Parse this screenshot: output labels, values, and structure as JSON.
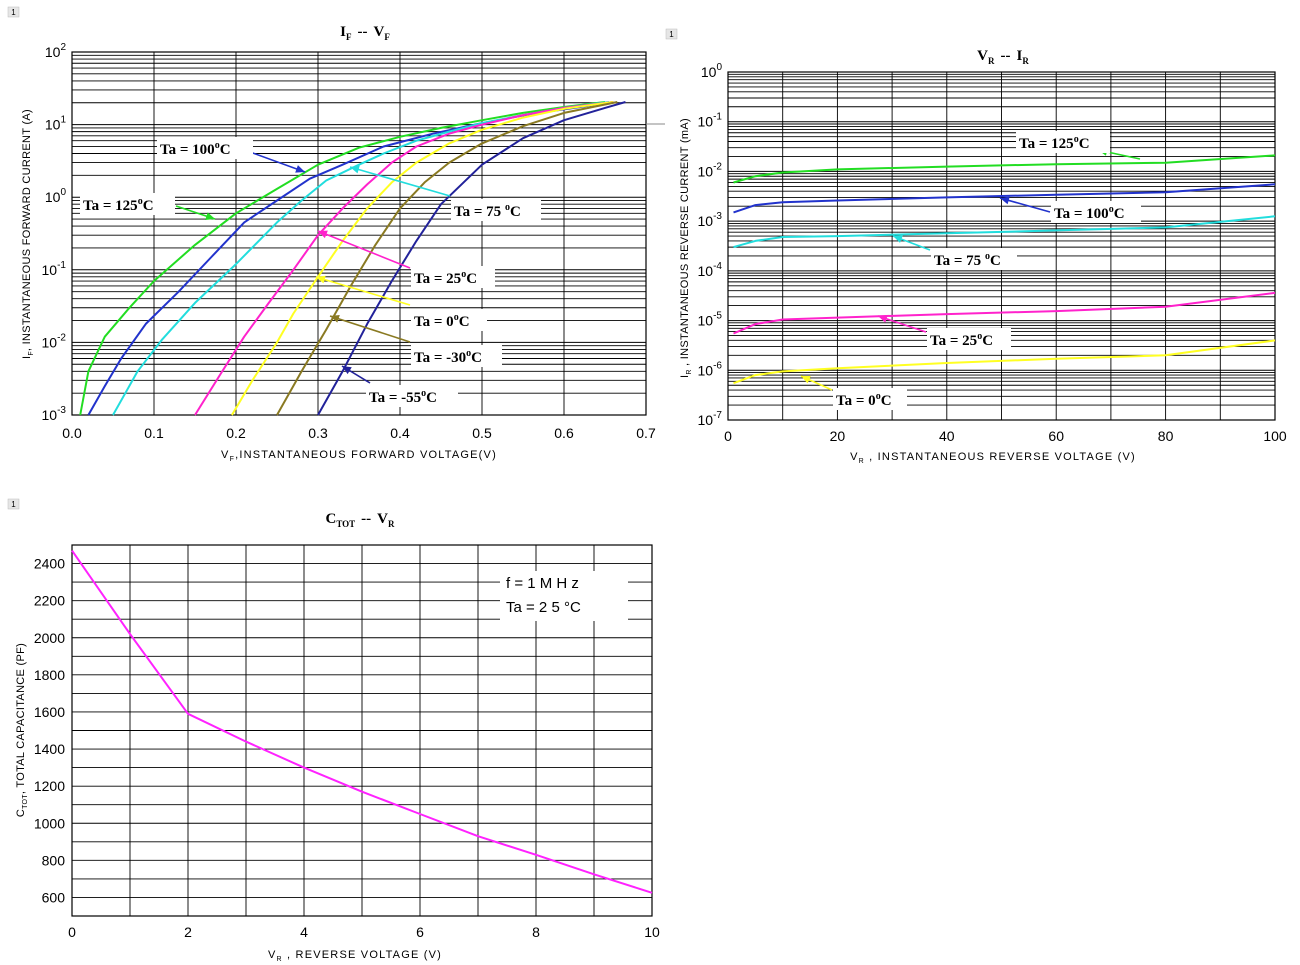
{
  "chart_data": [
    {
      "id": "ifvf",
      "type": "line",
      "title": "I F -- V F",
      "title_parts": [
        "I",
        "F",
        "--",
        "V",
        "F"
      ],
      "xlabel": "V F ,INSTANTANEOUS  FORWARD  VOLTAGE(V)",
      "xlabel_parts": [
        "V",
        "F",
        ",INSTANTANEOUS  FORWARD  VOLTAGE(V)"
      ],
      "ylabel": "I F , INSTANTANEOUS  FORWARD  CURRENT (A)",
      "ylabel_parts": [
        "I",
        "F",
        ", INSTANTANEOUS  FORWARD  CURRENT (A)"
      ],
      "xlim": [
        0,
        0.7
      ],
      "ylim": [
        0.001,
        100
      ],
      "yscale": "log",
      "grid": true,
      "x_ticks": [
        "0.0",
        "0.1",
        "0.2",
        "0.3",
        "0.4",
        "0.5",
        "0.6",
        "0.7"
      ],
      "y_ticks": [
        {
          "base": "10",
          "exp": "-3"
        },
        {
          "base": "10",
          "exp": "-2"
        },
        {
          "base": "10",
          "exp": "-1"
        },
        {
          "base": "10",
          "exp": "0"
        },
        {
          "base": "10",
          "exp": "1"
        },
        {
          "base": "10",
          "exp": "2"
        }
      ],
      "series": [
        {
          "name": "Ta = 125°C",
          "color": "#22dd22",
          "x": [
            0.01,
            0.02,
            0.04,
            0.07,
            0.1,
            0.15,
            0.2,
            0.25,
            0.3,
            0.35,
            0.4,
            0.45,
            0.5,
            0.55,
            0.6,
            0.65
          ],
          "y": [
            0.001,
            0.004,
            0.012,
            0.03,
            0.07,
            0.22,
            0.6,
            1.3,
            2.8,
            4.8,
            6.8,
            9.0,
            11.5,
            14.5,
            17.5,
            20.5
          ]
        },
        {
          "name": "Ta = 100°C",
          "color": "#2233cc",
          "x": [
            0.02,
            0.04,
            0.06,
            0.09,
            0.13,
            0.17,
            0.21,
            0.25,
            0.29,
            0.33,
            0.38,
            0.44,
            0.5,
            0.56,
            0.62,
            0.66
          ],
          "y": [
            0.001,
            0.0025,
            0.006,
            0.018,
            0.05,
            0.15,
            0.45,
            0.9,
            1.8,
            2.8,
            5.0,
            7.5,
            10.5,
            14.0,
            17.5,
            20.5
          ]
        },
        {
          "name": "Ta = 75°C",
          "color": "#22dddd",
          "x": [
            0.05,
            0.08,
            0.11,
            0.15,
            0.2,
            0.25,
            0.28,
            0.31,
            0.35,
            0.38,
            0.42,
            0.46,
            0.5,
            0.55,
            0.6,
            0.655
          ],
          "y": [
            0.001,
            0.004,
            0.011,
            0.035,
            0.12,
            0.45,
            0.9,
            1.7,
            2.8,
            4.0,
            6.0,
            8.0,
            10.5,
            13.5,
            17.0,
            20.5
          ]
        },
        {
          "name": "Ta = 25°C",
          "color": "#ff22cc",
          "x": [
            0.15,
            0.18,
            0.21,
            0.24,
            0.27,
            0.3,
            0.33,
            0.36,
            0.39,
            0.42,
            0.46,
            0.5,
            0.55,
            0.6,
            0.66
          ],
          "y": [
            0.001,
            0.0035,
            0.012,
            0.035,
            0.1,
            0.3,
            0.7,
            1.5,
            3.0,
            5.0,
            7.5,
            10.0,
            13.5,
            17.0,
            20.5
          ]
        },
        {
          "name": "Ta = 0°C",
          "color": "#ffff22",
          "x": [
            0.195,
            0.22,
            0.25,
            0.27,
            0.3,
            0.33,
            0.36,
            0.39,
            0.42,
            0.46,
            0.5,
            0.55,
            0.6,
            0.66
          ],
          "y": [
            0.001,
            0.003,
            0.01,
            0.025,
            0.08,
            0.25,
            0.7,
            1.6,
            3.0,
            5.5,
            8.5,
            12.5,
            16.5,
            20.5
          ]
        },
        {
          "name": "Ta = -30°C",
          "color": "#8a7a22",
          "x": [
            0.25,
            0.28,
            0.31,
            0.34,
            0.37,
            0.4,
            0.43,
            0.46,
            0.5,
            0.55,
            0.6,
            0.665
          ],
          "y": [
            0.001,
            0.004,
            0.015,
            0.06,
            0.22,
            0.7,
            1.6,
            3.0,
            5.5,
            9.5,
            14.5,
            20.5
          ]
        },
        {
          "name": "Ta = -55°C",
          "color": "#22229a",
          "x": [
            0.3,
            0.33,
            0.36,
            0.39,
            0.42,
            0.45,
            0.5,
            0.55,
            0.6,
            0.65,
            0.675
          ],
          "y": [
            0.001,
            0.004,
            0.018,
            0.07,
            0.25,
            0.8,
            2.8,
            6.5,
            11.5,
            17.0,
            20.5
          ]
        }
      ],
      "annotations": [
        {
          "text": "Ta = 100",
          "sup": "o",
          "unit": "C",
          "series": 1
        },
        {
          "text": "Ta = 125",
          "sup": "o",
          "unit": "C",
          "series": 0
        },
        {
          "text": "Ta = 75 ",
          "sup": "o",
          "unit": "C",
          "series": 2
        },
        {
          "text": "Ta = 25",
          "sup": "o",
          "unit": "C",
          "series": 3
        },
        {
          "text": "Ta = 0",
          "sup": "o",
          "unit": "C",
          "series": 4
        },
        {
          "text": "Ta = -30",
          "sup": "o",
          "unit": "C",
          "series": 5
        },
        {
          "text": "Ta = -55",
          "sup": "o",
          "unit": "C",
          "series": 6
        }
      ]
    },
    {
      "id": "vrir",
      "type": "line",
      "title": "V R -- I R",
      "title_parts": [
        "V",
        "R",
        "--",
        "I",
        "R"
      ],
      "xlabel": "V R , INSTANTANEOUS REVERSE VOLTAGE (V)",
      "xlabel_parts": [
        "V",
        "R",
        " , INSTANTANEOUS REVERSE VOLTAGE (V)"
      ],
      "ylabel": "I R , INSTANTANEOUS  REVERSE  CURRENT (mA)",
      "ylabel_parts": [
        "I",
        "R",
        " , INSTANTANEOUS  REVERSE  CURRENT (mA)"
      ],
      "xlim": [
        0,
        100
      ],
      "ylim": [
        1e-07,
        1
      ],
      "yscale": "log",
      "grid": true,
      "x_ticks": [
        "0",
        "20",
        "40",
        "60",
        "80",
        "100"
      ],
      "y_ticks": [
        {
          "base": "10",
          "exp": "-7"
        },
        {
          "base": "10",
          "exp": "-6"
        },
        {
          "base": "10",
          "exp": "-5"
        },
        {
          "base": "10",
          "exp": "-4"
        },
        {
          "base": "10",
          "exp": "-3"
        },
        {
          "base": "10",
          "exp": "-2"
        },
        {
          "base": "10",
          "exp": "-1"
        },
        {
          "base": "10",
          "exp": "0"
        }
      ],
      "series": [
        {
          "name": "Ta = 125°C",
          "color": "#22dd22",
          "x": [
            1,
            5,
            10,
            20,
            40,
            60,
            80,
            100
          ],
          "y": [
            0.006,
            0.008,
            0.0095,
            0.011,
            0.0125,
            0.014,
            0.015,
            0.021
          ]
        },
        {
          "name": "Ta = 100°C",
          "color": "#2233cc",
          "x": [
            1,
            5,
            10,
            20,
            40,
            60,
            80,
            100
          ],
          "y": [
            0.0015,
            0.0021,
            0.0024,
            0.0026,
            0.003,
            0.0034,
            0.0038,
            0.0055
          ]
        },
        {
          "name": "Ta = 75°C",
          "color": "#22dddd",
          "x": [
            1,
            5,
            10,
            20,
            40,
            60,
            80,
            100
          ],
          "y": [
            0.0003,
            0.0004,
            0.00048,
            0.0005,
            0.00057,
            0.00065,
            0.00075,
            0.00125
          ]
        },
        {
          "name": "Ta = 25°C",
          "color": "#ff22cc",
          "x": [
            1,
            5,
            10,
            20,
            40,
            60,
            80,
            100
          ],
          "y": [
            5.5e-06,
            8.5e-06,
            1.05e-05,
            1.15e-05,
            1.35e-05,
            1.55e-05,
            1.9e-05,
            3.6e-05
          ]
        },
        {
          "name": "Ta = 0°C",
          "color": "#ffff22",
          "x": [
            1,
            5,
            10,
            20,
            40,
            60,
            80,
            100
          ],
          "y": [
            5.5e-07,
            8e-07,
            9.5e-07,
            1.1e-06,
            1.4e-06,
            1.7e-06,
            2e-06,
            4e-06
          ]
        }
      ],
      "annotations": [
        {
          "text": "Ta = 125",
          "sup": "o",
          "unit": "C",
          "series": 0
        },
        {
          "text": "Ta = 100",
          "sup": "o",
          "unit": "C",
          "series": 1
        },
        {
          "text": "Ta = 75 ",
          "sup": "o",
          "unit": "C",
          "series": 2
        },
        {
          "text": "Ta = 25",
          "sup": "o",
          "unit": "C",
          "series": 3
        },
        {
          "text": "Ta = 0",
          "sup": "o",
          "unit": "C",
          "series": 4
        }
      ]
    },
    {
      "id": "ctot",
      "type": "line",
      "title": "C TOT -- V R",
      "title_parts": [
        "C",
        "TOT",
        "--",
        "V",
        "R"
      ],
      "xlabel": "V R , REVERSE VOLTAGE (V)",
      "xlabel_parts": [
        "V",
        "R",
        " , REVERSE VOLTAGE (V)"
      ],
      "ylabel": "C TOT , TOTAL CAPACITANCE (PF)",
      "ylabel_parts": [
        "C",
        "TOT",
        ", TOTAL CAPACITANCE (PF)"
      ],
      "xlim": [
        0,
        10
      ],
      "ylim": [
        500,
        2500
      ],
      "grid": true,
      "x_ticks": [
        "0",
        "2",
        "4",
        "6",
        "8",
        "10"
      ],
      "y_ticks": [
        "600",
        "800",
        "1000",
        "1200",
        "1400",
        "1600",
        "1800",
        "2000",
        "2200",
        "2400"
      ],
      "series": [
        {
          "color": "#ff22ff",
          "x": [
            0,
            1,
            2,
            3,
            4,
            5,
            6,
            7,
            8,
            9,
            10
          ],
          "y": [
            2470,
            2020,
            1590,
            1440,
            1300,
            1170,
            1050,
            930,
            830,
            725,
            625
          ]
        }
      ],
      "legend_text": [
        "f  =  1 M H z",
        "Ta  =  2 5 °C"
      ]
    }
  ]
}
